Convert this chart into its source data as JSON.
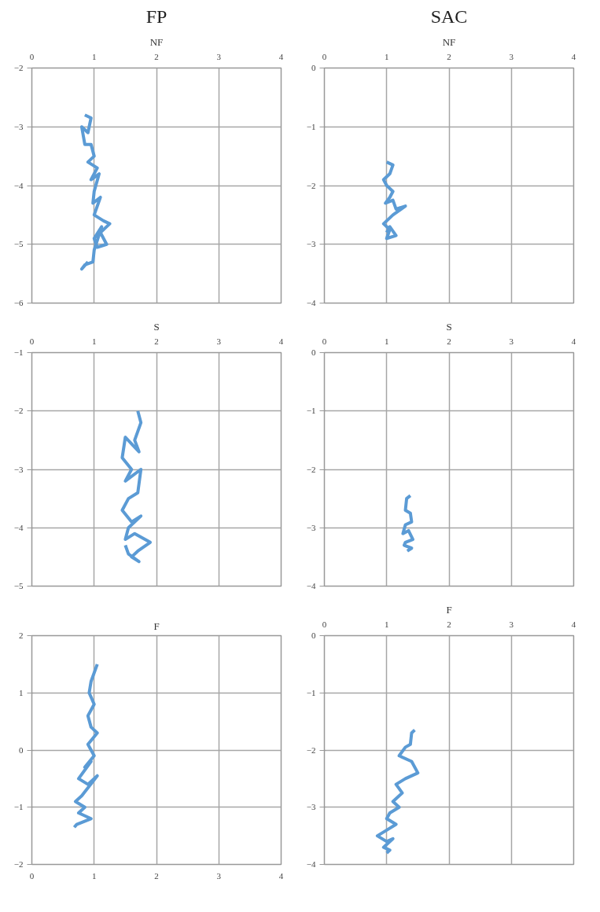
{
  "chart_data": [
    {
      "type": "line",
      "title": "FP",
      "subtitle": "NF",
      "xlim": [
        0,
        4
      ],
      "xticks": [
        0,
        1,
        2,
        3,
        4
      ],
      "ylim": [
        -6,
        -2
      ],
      "yticks": [
        -6,
        -5,
        -4,
        -3,
        -2
      ],
      "grid": true,
      "series": [
        {
          "color": "#5b9bd5",
          "x": [
            0.85,
            0.95,
            0.9,
            0.8,
            0.85,
            0.95,
            1.0,
            0.9,
            1.05,
            0.95,
            1.08,
            1.0,
            0.98,
            1.1,
            1.0,
            1.15,
            1.25,
            1.1,
            1.2,
            1.05,
            1.0,
            1.12,
            1.0,
            0.98,
            0.85,
            0.8,
            0.9
          ],
          "values": [
            -2.8,
            -2.85,
            -3.1,
            -3.0,
            -3.3,
            -3.3,
            -3.5,
            -3.6,
            -3.7,
            -3.9,
            -3.8,
            -4.1,
            -4.3,
            -4.2,
            -4.5,
            -4.6,
            -4.65,
            -4.8,
            -5.0,
            -5.05,
            -4.9,
            -4.7,
            -5.1,
            -5.3,
            -5.35,
            -5.42,
            -5.3
          ]
        }
      ]
    },
    {
      "type": "line",
      "title": "SAC",
      "subtitle": "NF",
      "xlim": [
        0,
        4
      ],
      "xticks": [
        0,
        1,
        2,
        3,
        4
      ],
      "ylim": [
        -4,
        0
      ],
      "yticks": [
        -4,
        -3,
        -2,
        -1,
        0
      ],
      "grid": true,
      "series": [
        {
          "color": "#5b9bd5",
          "x": [
            1.0,
            1.1,
            1.05,
            0.95,
            1.0,
            1.1,
            1.05,
            0.98,
            1.1,
            1.15,
            1.3,
            1.1,
            1.0,
            1.05,
            0.95,
            1.05,
            1.0,
            1.15,
            1.05,
            1.0
          ],
          "values": [
            -1.6,
            -1.65,
            -1.8,
            -1.9,
            -2.0,
            -2.1,
            -2.2,
            -2.3,
            -2.25,
            -2.4,
            -2.35,
            -2.5,
            -2.6,
            -2.55,
            -2.65,
            -2.75,
            -2.9,
            -2.85,
            -2.7,
            -2.8
          ]
        }
      ]
    },
    {
      "type": "line",
      "subtitle": "S",
      "xlim": [
        0,
        4
      ],
      "xticks": [
        0,
        1,
        2,
        3,
        4
      ],
      "ylim": [
        -5,
        -1
      ],
      "yticks": [
        -5,
        -4,
        -3,
        -2,
        -1
      ],
      "grid": true,
      "series": [
        {
          "color": "#5b9bd5",
          "x": [
            1.7,
            1.75,
            1.65,
            1.72,
            1.5,
            1.45,
            1.6,
            1.5,
            1.75,
            1.7,
            1.55,
            1.45,
            1.6,
            1.75,
            1.55,
            1.5,
            1.65,
            1.9,
            1.7,
            1.6,
            1.72,
            1.55,
            1.5
          ],
          "values": [
            -2.0,
            -2.2,
            -2.5,
            -2.7,
            -2.45,
            -2.8,
            -3.0,
            -3.2,
            -3.0,
            -3.4,
            -3.5,
            -3.7,
            -3.9,
            -3.8,
            -4.0,
            -4.2,
            -4.1,
            -4.25,
            -4.4,
            -4.5,
            -4.58,
            -4.45,
            -4.3
          ]
        }
      ]
    },
    {
      "type": "line",
      "subtitle": "S",
      "xlim": [
        0,
        4
      ],
      "xticks": [
        0,
        1,
        2,
        3,
        4
      ],
      "ylim": [
        -4,
        0
      ],
      "yticks": [
        -4,
        -3,
        -2,
        -1,
        0
      ],
      "grid": true,
      "series": [
        {
          "color": "#5b9bd5",
          "x": [
            1.38,
            1.32,
            1.3,
            1.38,
            1.4,
            1.3,
            1.26,
            1.35,
            1.42,
            1.3,
            1.28,
            1.4,
            1.33
          ],
          "values": [
            -2.45,
            -2.5,
            -2.7,
            -2.75,
            -2.9,
            -2.95,
            -3.1,
            -3.05,
            -3.2,
            -3.25,
            -3.3,
            -3.35,
            -3.4
          ]
        }
      ]
    },
    {
      "type": "line",
      "subtitle": "F",
      "xlim": [
        0,
        4
      ],
      "xticks": [
        0,
        1,
        2,
        3,
        4
      ],
      "ylim": [
        -2,
        2
      ],
      "yticks": [
        -2,
        -1,
        0,
        1,
        2
      ],
      "grid": true,
      "series": [
        {
          "color": "#5b9bd5",
          "x": [
            1.05,
            0.95,
            0.92,
            1.0,
            0.9,
            0.95,
            1.05,
            0.9,
            1.0,
            0.85,
            0.95,
            0.75,
            0.9,
            1.05,
            0.8,
            0.7,
            0.85,
            0.75,
            0.95,
            0.72,
            0.68
          ],
          "values": [
            1.5,
            1.2,
            1.0,
            0.8,
            0.6,
            0.4,
            0.3,
            0.1,
            -0.1,
            -0.3,
            -0.2,
            -0.5,
            -0.6,
            -0.45,
            -0.8,
            -0.9,
            -1.0,
            -1.1,
            -1.2,
            -1.3,
            -1.35
          ]
        }
      ]
    },
    {
      "type": "line",
      "subtitle": "F",
      "xlim": [
        0,
        4
      ],
      "xticks": [
        0,
        1,
        2,
        3,
        4
      ],
      "ylim": [
        -4,
        0
      ],
      "yticks": [
        -4,
        -3,
        -2,
        -1,
        0
      ],
      "grid": true,
      "series": [
        {
          "color": "#5b9bd5",
          "x": [
            1.45,
            1.4,
            1.38,
            1.3,
            1.2,
            1.4,
            1.5,
            1.3,
            1.15,
            1.25,
            1.1,
            1.2,
            1.05,
            1.0,
            1.15,
            1.0,
            0.85,
            1.0,
            1.1,
            0.95,
            1.05,
            1.0
          ],
          "values": [
            -1.65,
            -1.7,
            -1.9,
            -1.95,
            -2.1,
            -2.2,
            -2.4,
            -2.5,
            -2.6,
            -2.75,
            -2.9,
            -3.0,
            -3.1,
            -3.2,
            -3.3,
            -3.4,
            -3.5,
            -3.6,
            -3.55,
            -3.7,
            -3.75,
            -3.8
          ]
        }
      ]
    }
  ]
}
